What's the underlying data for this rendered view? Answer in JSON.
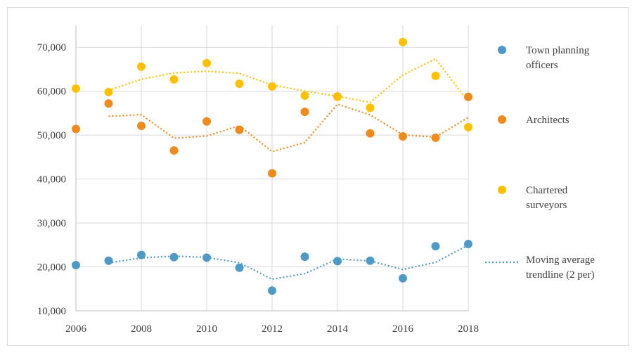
{
  "chart_data": {
    "type": "scatter",
    "x": [
      2006,
      2007,
      2008,
      2009,
      2010,
      2011,
      2012,
      2013,
      2014,
      2015,
      2016,
      2017,
      2018
    ],
    "series": [
      {
        "name": "Town planning officers",
        "color": "#4e9ac7",
        "values": [
          20400,
          21400,
          22700,
          22200,
          22100,
          19800,
          14600,
          22300,
          21300,
          21400,
          17400,
          24700,
          25200
        ]
      },
      {
        "name": "Architects",
        "color": "#f08a1c",
        "values": [
          51400,
          57200,
          52100,
          46500,
          53100,
          51200,
          41300,
          55300,
          58800,
          50400,
          49700,
          49400,
          58700
        ]
      },
      {
        "name": "Chartered surveyors",
        "color": "#ffc000",
        "values": [
          60600,
          59800,
          65600,
          62700,
          66400,
          61700,
          61100,
          59000,
          58700,
          56200,
          71200,
          63500,
          51800
        ]
      }
    ],
    "trendline": {
      "type": "moving_average",
      "period": 2,
      "style": "dotted"
    },
    "xlim": [
      2006,
      2018
    ],
    "ylim": [
      10000,
      75000
    ],
    "xticks": [
      "2006",
      "2008",
      "2010",
      "2012",
      "2014",
      "2016",
      "2018"
    ],
    "yticks": [
      "10,000",
      "20,000",
      "30,000",
      "40,000",
      "50,000",
      "60,000",
      "70,000"
    ],
    "grid": true,
    "legend_position": "right"
  },
  "legend": {
    "items": [
      {
        "lines": [
          "Town planning",
          "officers"
        ],
        "marker": "dot",
        "color": "#4e9ac7"
      },
      {
        "lines": [
          "Architects"
        ],
        "marker": "dot",
        "color": "#f08a1c"
      },
      {
        "lines": [
          "Chartered",
          "surveyors"
        ],
        "marker": "dot",
        "color": "#ffc000"
      },
      {
        "lines": [
          "Moving average",
          "trendline (2 per)"
        ],
        "marker": "dotted-line",
        "color": "#4e9ac7"
      }
    ]
  }
}
